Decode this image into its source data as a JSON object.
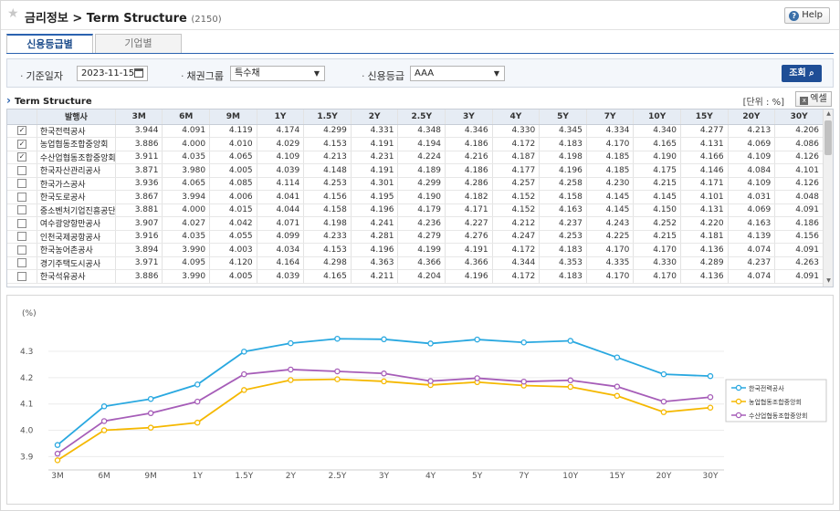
{
  "header": {
    "title": "금리정보 > Term Structure",
    "code": "(2150)",
    "help_label": "Help"
  },
  "tabs": [
    {
      "label": "신용등급별",
      "active": true
    },
    {
      "label": "기업별",
      "active": false
    }
  ],
  "filter": {
    "date_label": "기준일자",
    "date_value": "2023-11-15",
    "bond_group_label": "채권그룹",
    "bond_group_value": "특수채",
    "rating_label": "신용등급",
    "rating_value": "AAA",
    "search_label": "조회"
  },
  "section": {
    "title": "Term Structure",
    "unit": "[단위 : %]",
    "excel_label": "엑셀"
  },
  "table": {
    "headers": [
      "발행사",
      "3M",
      "6M",
      "9M",
      "1Y",
      "1.5Y",
      "2Y",
      "2.5Y",
      "3Y",
      "4Y",
      "5Y",
      "7Y",
      "10Y",
      "15Y",
      "20Y",
      "30Y"
    ],
    "rows": [
      {
        "checked": true,
        "name": "한국전력공사",
        "values": [
          "3.944",
          "4.091",
          "4.119",
          "4.174",
          "4.299",
          "4.331",
          "4.348",
          "4.346",
          "4.330",
          "4.345",
          "4.334",
          "4.340",
          "4.277",
          "4.213",
          "4.206"
        ]
      },
      {
        "checked": true,
        "name": "농업협동조합중앙회",
        "values": [
          "3.886",
          "4.000",
          "4.010",
          "4.029",
          "4.153",
          "4.191",
          "4.194",
          "4.186",
          "4.172",
          "4.183",
          "4.170",
          "4.165",
          "4.131",
          "4.069",
          "4.086"
        ]
      },
      {
        "checked": true,
        "name": "수산업협동조합중앙회",
        "values": [
          "3.911",
          "4.035",
          "4.065",
          "4.109",
          "4.213",
          "4.231",
          "4.224",
          "4.216",
          "4.187",
          "4.198",
          "4.185",
          "4.190",
          "4.166",
          "4.109",
          "4.126"
        ]
      },
      {
        "checked": false,
        "name": "한국자산관리공사",
        "values": [
          "3.871",
          "3.980",
          "4.005",
          "4.039",
          "4.148",
          "4.191",
          "4.189",
          "4.186",
          "4.177",
          "4.196",
          "4.185",
          "4.175",
          "4.146",
          "4.084",
          "4.101"
        ]
      },
      {
        "checked": false,
        "name": "한국가스공사",
        "values": [
          "3.936",
          "4.065",
          "4.085",
          "4.114",
          "4.253",
          "4.301",
          "4.299",
          "4.286",
          "4.257",
          "4.258",
          "4.230",
          "4.215",
          "4.171",
          "4.109",
          "4.126"
        ]
      },
      {
        "checked": false,
        "name": "한국도로공사",
        "values": [
          "3.867",
          "3.994",
          "4.006",
          "4.041",
          "4.156",
          "4.195",
          "4.190",
          "4.182",
          "4.152",
          "4.158",
          "4.145",
          "4.145",
          "4.101",
          "4.031",
          "4.048"
        ]
      },
      {
        "checked": false,
        "name": "중소벤처기업진흥공단",
        "values": [
          "3.881",
          "4.000",
          "4.015",
          "4.044",
          "4.158",
          "4.196",
          "4.179",
          "4.171",
          "4.152",
          "4.163",
          "4.145",
          "4.150",
          "4.131",
          "4.069",
          "4.091"
        ]
      },
      {
        "checked": false,
        "name": "여수광양항만공사",
        "values": [
          "3.907",
          "4.027",
          "4.042",
          "4.071",
          "4.198",
          "4.241",
          "4.236",
          "4.227",
          "4.212",
          "4.237",
          "4.243",
          "4.252",
          "4.220",
          "4.163",
          "4.186"
        ]
      },
      {
        "checked": false,
        "name": "인천국제공항공사",
        "values": [
          "3.916",
          "4.035",
          "4.055",
          "4.099",
          "4.233",
          "4.281",
          "4.279",
          "4.276",
          "4.247",
          "4.253",
          "4.225",
          "4.215",
          "4.181",
          "4.139",
          "4.156"
        ]
      },
      {
        "checked": false,
        "name": "한국농어촌공사",
        "values": [
          "3.894",
          "3.990",
          "4.003",
          "4.034",
          "4.153",
          "4.196",
          "4.199",
          "4.191",
          "4.172",
          "4.183",
          "4.170",
          "4.170",
          "4.136",
          "4.074",
          "4.091"
        ]
      },
      {
        "checked": false,
        "name": "경기주택도시공사",
        "values": [
          "3.971",
          "4.095",
          "4.120",
          "4.164",
          "4.298",
          "4.363",
          "4.366",
          "4.366",
          "4.344",
          "4.353",
          "4.335",
          "4.330",
          "4.289",
          "4.237",
          "4.263"
        ]
      },
      {
        "checked": false,
        "name": "한국석유공사",
        "values": [
          "3.886",
          "3.990",
          "4.005",
          "4.039",
          "4.165",
          "4.211",
          "4.204",
          "4.196",
          "4.172",
          "4.183",
          "4.170",
          "4.170",
          "4.136",
          "4.074",
          "4.091"
        ]
      }
    ]
  },
  "chart_data": {
    "type": "line",
    "ylabel": "(%)",
    "ylim": [
      3.87,
      4.38
    ],
    "yticks": [
      "3.9",
      "4.0",
      "4.1",
      "4.2",
      "4.3"
    ],
    "x": [
      "3M",
      "6M",
      "9M",
      "1Y",
      "1.5Y",
      "2Y",
      "2.5Y",
      "3Y",
      "4Y",
      "5Y",
      "7Y",
      "10Y",
      "15Y",
      "20Y",
      "30Y"
    ],
    "legend_position": "right",
    "grid": true,
    "series": [
      {
        "name": "한국전력공사",
        "color": "#29a8e0",
        "values": [
          3.944,
          4.091,
          4.119,
          4.174,
          4.299,
          4.331,
          4.348,
          4.346,
          4.33,
          4.345,
          4.334,
          4.34,
          4.277,
          4.213,
          4.206
        ]
      },
      {
        "name": "농업협동조합중앙회",
        "color": "#f5b800",
        "values": [
          3.886,
          4.0,
          4.01,
          4.029,
          4.153,
          4.191,
          4.194,
          4.186,
          4.172,
          4.183,
          4.17,
          4.165,
          4.131,
          4.069,
          4.086
        ]
      },
      {
        "name": "수산업협동조합중앙회",
        "color": "#a65db8",
        "values": [
          3.911,
          4.035,
          4.065,
          4.109,
          4.213,
          4.231,
          4.224,
          4.216,
          4.187,
          4.198,
          4.185,
          4.19,
          4.166,
          4.109,
          4.126
        ]
      }
    ]
  }
}
